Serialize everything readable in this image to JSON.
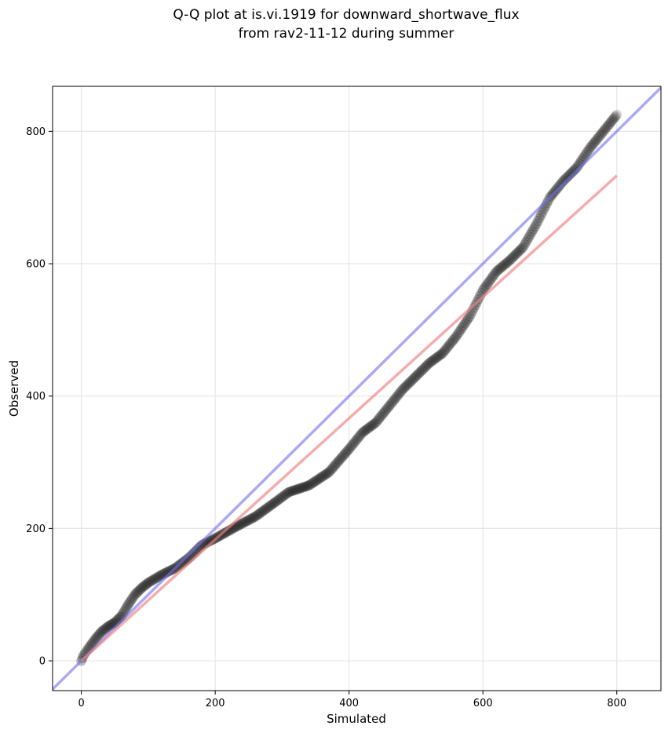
{
  "chart_data": {
    "type": "scatter",
    "title": [
      "Q-Q plot at is.vi.1919 for downward_shortwave_flux",
      "from rav2-11-12 during summer"
    ],
    "xlabel": "Simulated",
    "ylabel": "Observed",
    "xlim": [
      -43,
      866
    ],
    "ylim": [
      -45,
      868
    ],
    "xticks": [
      0,
      200,
      400,
      600,
      800
    ],
    "yticks": [
      0,
      200,
      400,
      600,
      800
    ],
    "grid": true,
    "point_color": "#1a1a1a",
    "identity_line": {
      "color": "#7070f0",
      "x": [
        -43,
        866
      ],
      "y": [
        -43,
        866
      ]
    },
    "fit_line": {
      "color": "#f08080",
      "x": [
        0,
        800
      ],
      "y": [
        0,
        733
      ]
    },
    "quantile_knots": {
      "x": [
        0,
        3,
        10,
        20,
        30,
        40,
        50,
        60,
        70,
        80,
        90,
        100,
        120,
        140,
        160,
        180,
        200,
        230,
        260,
        290,
        310,
        340,
        370,
        400,
        420,
        440,
        460,
        480,
        500,
        520,
        540,
        560,
        580,
        600,
        620,
        640,
        660,
        680,
        700,
        720,
        740,
        760,
        780,
        800
      ],
      "y": [
        0,
        8,
        18,
        32,
        44,
        52,
        58,
        68,
        85,
        100,
        110,
        118,
        130,
        140,
        155,
        175,
        185,
        202,
        218,
        240,
        255,
        265,
        285,
        320,
        345,
        360,
        385,
        410,
        430,
        450,
        465,
        490,
        520,
        560,
        588,
        605,
        625,
        660,
        700,
        725,
        745,
        775,
        800,
        825
      ]
    }
  }
}
